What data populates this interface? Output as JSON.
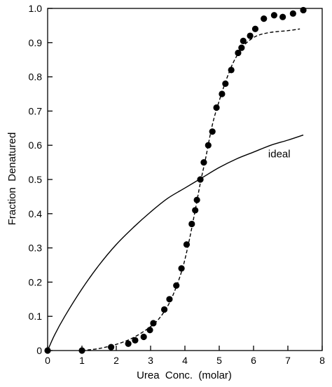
{
  "chart_data": {
    "type": "scatter",
    "xlabel": "Urea  Conc.  (molar)",
    "ylabel": "Fraction  Denatured",
    "xlim": [
      0,
      8
    ],
    "ylim": [
      0,
      1.0
    ],
    "xticks": [
      0,
      1,
      2,
      3,
      4,
      5,
      6,
      7,
      8
    ],
    "yticks": [
      0,
      0.1,
      0.2,
      0.3,
      0.4,
      0.5,
      0.6,
      0.7,
      0.8,
      0.9,
      1.0
    ],
    "ytick_labels": [
      "0",
      "0.1",
      "0.2",
      "0.3",
      "0.4",
      "0.5",
      "0.6",
      "0.7",
      "0.8",
      "0.9",
      "1.0"
    ],
    "grid": false,
    "annotations": [
      {
        "text": "ideal",
        "x": 6.75,
        "y": 0.565
      }
    ],
    "series": [
      {
        "kind": "points",
        "marker": "filled-circle",
        "color": "#000000",
        "points": [
          [
            0.0,
            0.0
          ],
          [
            1.0,
            0.0
          ],
          [
            1.85,
            0.01
          ],
          [
            2.35,
            0.02
          ],
          [
            2.55,
            0.03
          ],
          [
            2.8,
            0.04
          ],
          [
            2.98,
            0.06
          ],
          [
            3.08,
            0.08
          ],
          [
            3.4,
            0.12
          ],
          [
            3.55,
            0.15
          ],
          [
            3.75,
            0.19
          ],
          [
            3.9,
            0.24
          ],
          [
            4.05,
            0.31
          ],
          [
            4.2,
            0.37
          ],
          [
            4.3,
            0.41
          ],
          [
            4.35,
            0.44
          ],
          [
            4.45,
            0.5
          ],
          [
            4.55,
            0.55
          ],
          [
            4.68,
            0.6
          ],
          [
            4.8,
            0.64
          ],
          [
            4.92,
            0.71
          ],
          [
            5.08,
            0.75
          ],
          [
            5.18,
            0.78
          ],
          [
            5.35,
            0.82
          ],
          [
            5.55,
            0.87
          ],
          [
            5.65,
            0.885
          ],
          [
            5.7,
            0.905
          ],
          [
            5.9,
            0.92
          ],
          [
            6.05,
            0.94
          ],
          [
            6.3,
            0.97
          ],
          [
            6.6,
            0.98
          ],
          [
            6.85,
            0.975
          ],
          [
            7.15,
            0.985
          ],
          [
            7.45,
            0.995
          ]
        ]
      },
      {
        "kind": "line",
        "style": "dashed",
        "color": "#000000",
        "points": [
          [
            1.0,
            0.0
          ],
          [
            1.5,
            0.006
          ],
          [
            2.0,
            0.018
          ],
          [
            2.5,
            0.038
          ],
          [
            3.0,
            0.07
          ],
          [
            3.3,
            0.1
          ],
          [
            3.6,
            0.15
          ],
          [
            3.9,
            0.23
          ],
          [
            4.1,
            0.31
          ],
          [
            4.3,
            0.41
          ],
          [
            4.45,
            0.49
          ],
          [
            4.6,
            0.56
          ],
          [
            4.8,
            0.66
          ],
          [
            5.0,
            0.73
          ],
          [
            5.2,
            0.79
          ],
          [
            5.4,
            0.84
          ],
          [
            5.6,
            0.875
          ],
          [
            5.8,
            0.9
          ],
          [
            6.1,
            0.92
          ],
          [
            6.5,
            0.93
          ],
          [
            7.0,
            0.935
          ],
          [
            7.35,
            0.94
          ]
        ]
      },
      {
        "kind": "line",
        "style": "solid",
        "color": "#000000",
        "points": [
          [
            0.0,
            0.0
          ],
          [
            0.2,
            0.045
          ],
          [
            0.5,
            0.1
          ],
          [
            1.0,
            0.18
          ],
          [
            1.5,
            0.25
          ],
          [
            2.0,
            0.31
          ],
          [
            2.5,
            0.36
          ],
          [
            3.0,
            0.405
          ],
          [
            3.5,
            0.445
          ],
          [
            4.0,
            0.475
          ],
          [
            4.5,
            0.505
          ],
          [
            5.0,
            0.535
          ],
          [
            5.5,
            0.56
          ],
          [
            6.0,
            0.58
          ],
          [
            6.5,
            0.6
          ],
          [
            7.0,
            0.615
          ],
          [
            7.45,
            0.63
          ]
        ]
      }
    ]
  }
}
